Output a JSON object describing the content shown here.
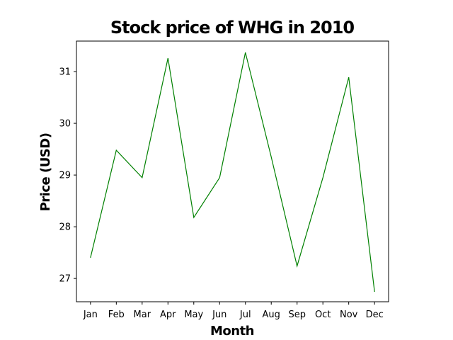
{
  "chart_data": {
    "type": "line",
    "title": "Stock price of WHG in 2010",
    "xlabel": "Month",
    "ylabel": "Price (USD)",
    "categories": [
      "Jan",
      "Feb",
      "Mar",
      "Apr",
      "May",
      "Jun",
      "Jul",
      "Aug",
      "Sep",
      "Oct",
      "Nov",
      "Dec"
    ],
    "series": [
      {
        "values": [
          27.4,
          29.48,
          28.95,
          31.26,
          28.18,
          28.95,
          31.37,
          29.35,
          27.24,
          28.95,
          30.89,
          26.74
        ],
        "color": "#008000"
      }
    ],
    "yticks": [
      27,
      28,
      29,
      30,
      31
    ],
    "ylim": [
      26.55,
      31.59
    ],
    "grid": false,
    "legend": false
  }
}
